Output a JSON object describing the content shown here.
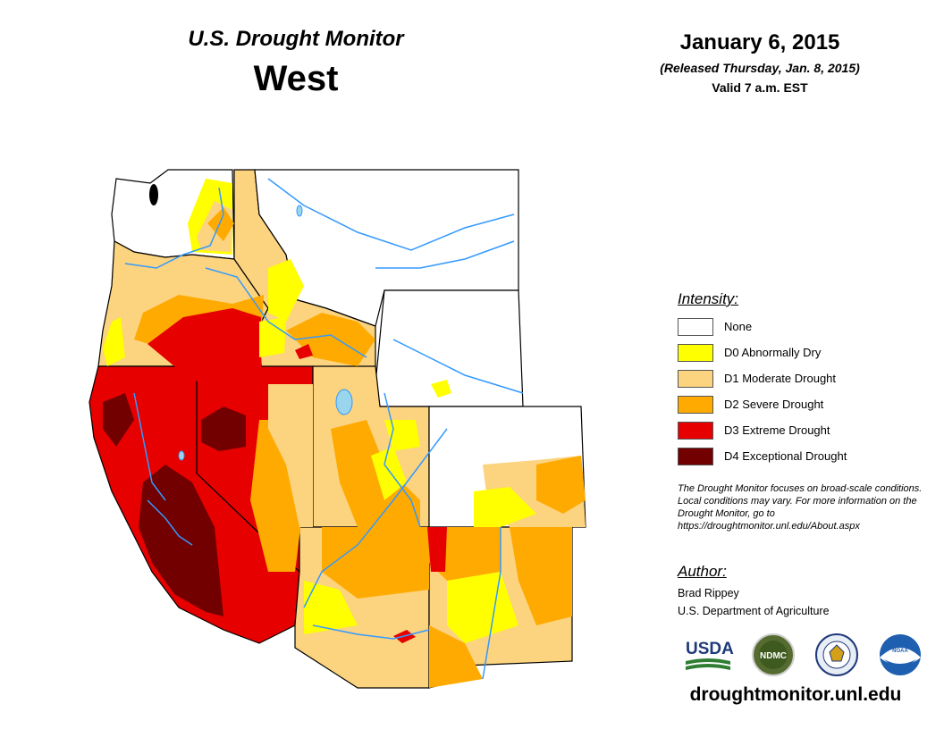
{
  "header": {
    "monitor_title": "U.S. Drought Monitor",
    "region": "West",
    "date": "January 6, 2015",
    "released": "(Released Thursday, Jan. 8, 2015)",
    "valid": "Valid 7 a.m. EST"
  },
  "legend": {
    "title": "Intensity:",
    "items": [
      {
        "label": "None",
        "color": "#ffffff"
      },
      {
        "label": "D0 Abnormally Dry",
        "color": "#ffff00"
      },
      {
        "label": "D1 Moderate Drought",
        "color": "#fcd37f"
      },
      {
        "label": "D2 Severe Drought",
        "color": "#ffaa00"
      },
      {
        "label": "D3 Extreme Drought",
        "color": "#e60000"
      },
      {
        "label": "D4 Exceptional Drought",
        "color": "#730000"
      }
    ]
  },
  "note": "The Drought Monitor focuses on broad-scale conditions. Local conditions may vary. For more information on the Drought Monitor, go to https://droughtmonitor.unl.edu/About.aspx",
  "author": {
    "heading": "Author:",
    "name": "Brad Rippey",
    "organization": "U.S. Department of Agriculture"
  },
  "logos": [
    {
      "name": "usda-logo",
      "text": "USDA"
    },
    {
      "name": "ndmc-logo",
      "text": "NDMC"
    },
    {
      "name": "doc-seal",
      "text": ""
    },
    {
      "name": "noaa-logo",
      "text": "NOAA"
    }
  ],
  "website": "droughtmonitor.unl.edu",
  "map_colors": {
    "none": "#ffffff",
    "d0": "#ffff00",
    "d1": "#fcd37f",
    "d2": "#ffaa00",
    "d3": "#e60000",
    "d4": "#730000",
    "water": "#3399ff",
    "border": "#000000"
  }
}
